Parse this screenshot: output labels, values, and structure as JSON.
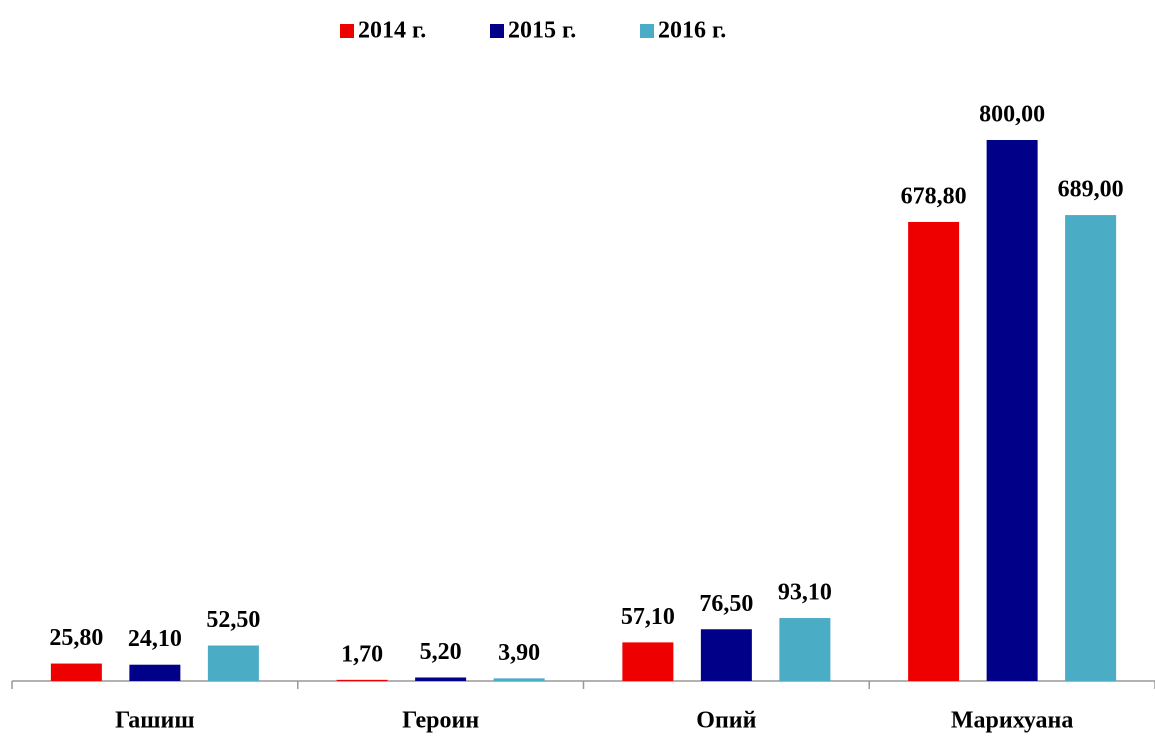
{
  "chart_data": {
    "type": "bar",
    "categories": [
      "Гашиш",
      "Героин",
      "Опий",
      "Марихуана"
    ],
    "series": [
      {
        "name": "2014 г.",
        "color": "#ee0000",
        "values": [
          25.8,
          1.7,
          57.1,
          678.8
        ],
        "value_labels": [
          "25,80",
          "1,70",
          "57,10",
          "678,80"
        ]
      },
      {
        "name": "2015 г.",
        "color": "#000088",
        "values": [
          24.1,
          5.2,
          76.5,
          800
        ],
        "value_labels": [
          "24,10",
          "5,20",
          "76,50",
          "800,00"
        ]
      },
      {
        "name": "2016 г.",
        "color": "#4bacc6",
        "values": [
          52.5,
          3.9,
          93.1,
          689
        ],
        "value_labels": [
          "52,50",
          "3,90",
          "93,10",
          "689,00"
        ]
      }
    ],
    "legend": "top"
  }
}
